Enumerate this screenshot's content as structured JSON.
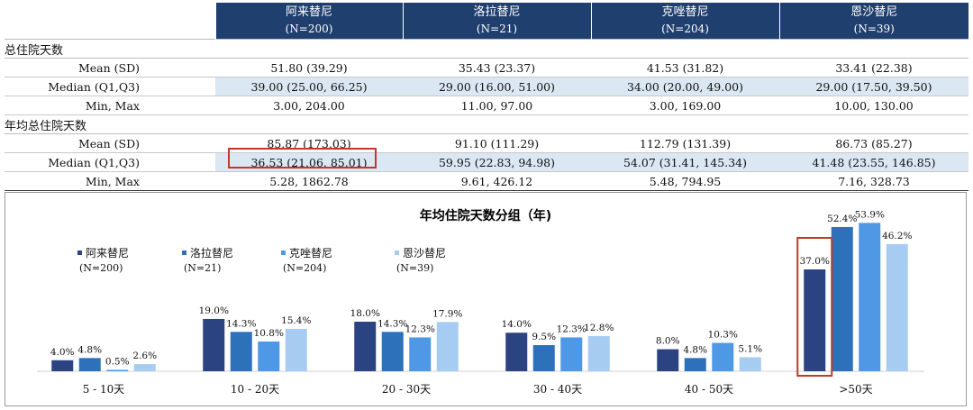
{
  "table": {
    "columns": [
      {
        "drug": "阿来替尼",
        "n": "(N=200)"
      },
      {
        "drug": "洛拉替尼",
        "n": "(N=21)"
      },
      {
        "drug": "克唑替尼",
        "n": "(N=204)"
      },
      {
        "drug": "恩沙替尼",
        "n": "(N=39)"
      }
    ],
    "sections": [
      {
        "title": "总住院天数",
        "rows": [
          {
            "label": "Mean (SD)",
            "values": [
              "51.80 (39.29)",
              "35.43 (23.37)",
              "41.53 (31.82)",
              "33.41 (22.38)"
            ]
          },
          {
            "label": "Median (Q1,Q3)",
            "values": [
              "39.00 (25.00, 66.25)",
              "29.00 (16.00, 51.00)",
              "34.00 (20.00, 49.00)",
              "29.00 (17.50, 39.50)"
            ]
          },
          {
            "label": "Min, Max",
            "values": [
              "3.00, 204.00",
              "11.00, 97.00",
              "3.00, 169.00",
              "10.00, 130.00"
            ]
          }
        ]
      },
      {
        "title": "年均总住院天数",
        "rows": [
          {
            "label": "Mean (SD)",
            "values": [
              "85.87 (173.03)",
              "91.10 (111.29)",
              "112.79 (131.39)",
              "86.73 (85.27)"
            ]
          },
          {
            "label": "Median (Q1,Q3)",
            "values": [
              "36.53 (21.06, 85.01)",
              "59.95 (22.83, 94.98)",
              "54.07 (31.41, 145.34)",
              "41.48 (23.55, 146.85)"
            ]
          },
          {
            "label": "Min, Max",
            "values": [
              "5.28, 1862.78",
              "9.61, 426.12",
              "5.48, 794.95",
              "7.16, 328.73"
            ]
          }
        ]
      }
    ]
  },
  "colors": {
    "header_bg": "#1f3f6e",
    "row_shade": "#dce7f4",
    "highlight": "#c0392b"
  },
  "chart_data": {
    "type": "bar",
    "title": "年均住院天数分组（年)",
    "categories": [
      "5 - 10天",
      "10 - 20天",
      "20 - 30天",
      "30 - 40天",
      "40 - 50天",
      ">50天"
    ],
    "series": [
      {
        "name": "阿来替尼",
        "n": "(N=200)",
        "color": "#2c4381",
        "values": [
          4.0,
          19.0,
          18.0,
          14.0,
          8.0,
          37.0
        ],
        "labels": [
          "4.0%",
          "19.0%",
          "18.0%",
          "14.0%",
          "8.0%",
          "37.0%"
        ]
      },
      {
        "name": "洛拉替尼",
        "n": "(N=21)",
        "color": "#2e71bb",
        "values": [
          4.8,
          14.3,
          14.3,
          9.5,
          4.8,
          52.4
        ],
        "labels": [
          "4.8%",
          "14.3%",
          "14.3%",
          "9.5%",
          "4.8%",
          "52.4%"
        ]
      },
      {
        "name": "克唑替尼",
        "n": "(N=204)",
        "color": "#4f98e6",
        "values": [
          0.5,
          10.8,
          12.3,
          12.3,
          10.3,
          53.9
        ],
        "labels": [
          "0.5%",
          "10.8%",
          "12.3%",
          "12.3%",
          "10.3%",
          "53.9%"
        ]
      },
      {
        "name": "恩沙替尼",
        "n": "(N=39)",
        "color": "#a7ccf2",
        "values": [
          2.6,
          15.4,
          17.9,
          12.8,
          5.1,
          46.2
        ],
        "labels": [
          "2.6%",
          "15.4%",
          "17.9%",
          "12.8%",
          "5.1%",
          "46.2%"
        ]
      }
    ],
    "ylim": [
      0,
      55
    ],
    "grid": false,
    "legend_position": "top-left",
    "highlighted_bar": {
      "category": ">50天",
      "series": "阿来替尼"
    }
  }
}
